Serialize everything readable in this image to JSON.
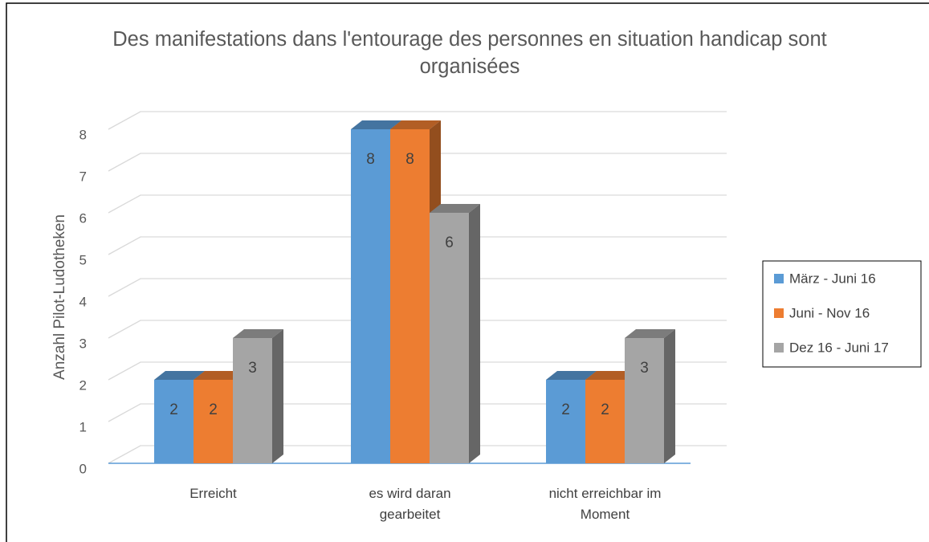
{
  "chart_data": {
    "type": "bar3d",
    "title": "Des manifestations dans l'entourage des personnes en situation handicap sont organisées",
    "y_axis_label": "Anzahl  Pilot-Ludotheken",
    "categories": [
      "Erreicht",
      "es wird daran gearbeitet",
      "nicht erreichbar im Moment"
    ],
    "series": [
      {
        "name": "März - Juni 16",
        "color": "#5b9bd5",
        "values": [
          2,
          8,
          2
        ]
      },
      {
        "name": "Juni - Nov 16",
        "color": "#ed7d31",
        "values": [
          2,
          8,
          2
        ]
      },
      {
        "name": "Dez 16 - Juni 17",
        "color": "#a5a5a5",
        "values": [
          3,
          6,
          3
        ]
      }
    ],
    "ylim": [
      0,
      8
    ],
    "yticks": [
      0,
      1,
      2,
      3,
      4,
      5,
      6,
      7,
      8
    ],
    "grid": true,
    "legend": "right"
  }
}
